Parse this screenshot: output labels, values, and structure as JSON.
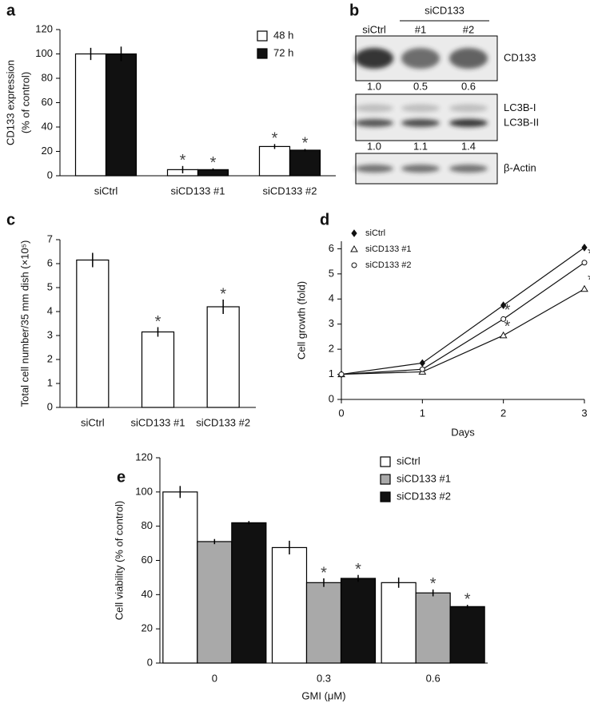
{
  "chart_data": [
    {
      "type": "bar",
      "panel": "a",
      "ylabel": [
        "CD133 expression",
        "(% of control)"
      ],
      "categories": [
        "siCtrl",
        "siCD133 #1",
        "siCD133 #2"
      ],
      "series": [
        {
          "name": "48 h",
          "color": "#ffffff",
          "values": [
            100,
            5,
            24
          ],
          "errors": [
            5,
            3,
            2
          ],
          "annotations": [
            null,
            "*",
            "*"
          ]
        },
        {
          "name": "72 h",
          "color": "#111111",
          "values": [
            100,
            5,
            21
          ],
          "errors": [
            6,
            1,
            1
          ],
          "annotations": [
            null,
            "*",
            "*"
          ]
        }
      ],
      "ylim": [
        0,
        120
      ],
      "yticks": [
        0,
        20,
        40,
        60,
        80,
        100,
        120
      ]
    },
    {
      "type": "blot",
      "panel": "b",
      "group_label": "siCD133",
      "lanes": [
        "siCtrl",
        "#1",
        "#2"
      ],
      "blots": [
        {
          "bands": [
            "CD133"
          ],
          "quantification": {
            "values": [
              1.0,
              0.5,
              0.6
            ],
            "value_labels": [
              "1.0",
              "0.5",
              "0.6"
            ]
          }
        },
        {
          "bands": [
            "LC3B-I",
            "LC3B-II"
          ],
          "quantification": {
            "values": [
              1.0,
              1.1,
              1.4
            ],
            "value_labels": [
              "1.0",
              "1.1",
              "1.4"
            ]
          }
        },
        {
          "bands": [
            "β-Actin"
          ]
        }
      ]
    },
    {
      "type": "bar",
      "panel": "c",
      "ylabel": "Total cell number/35 mm dish (×10⁵)",
      "categories": [
        "siCtrl",
        "siCD133 #1",
        "siCD133 #2"
      ],
      "series": [
        {
          "color": "#ffffff",
          "values": [
            6.15,
            3.15,
            4.2
          ],
          "errors": [
            0.3,
            0.2,
            0.3
          ],
          "annotations": [
            null,
            "*",
            "*"
          ]
        }
      ],
      "ylim": [
        0,
        7
      ],
      "yticks": [
        0,
        1,
        2,
        3,
        4,
        5,
        6,
        7
      ]
    },
    {
      "type": "line",
      "panel": "d",
      "xlabel": "Days",
      "ylabel": "Cell growth (fold)",
      "x": [
        0,
        1,
        2,
        3
      ],
      "series": [
        {
          "name": "siCtrl",
          "marker": "diamond",
          "color": "#111111",
          "values": [
            1,
            1.45,
            3.75,
            6.05
          ]
        },
        {
          "name": "siCD133 #1",
          "marker": "triangle",
          "color": "#111111",
          "values": [
            1,
            1.1,
            2.55,
            4.4
          ],
          "annotations": [
            null,
            null,
            "*",
            "*"
          ]
        },
        {
          "name": "siCD133 #2",
          "marker": "circle",
          "color": "#111111",
          "values": [
            1,
            1.2,
            3.2,
            5.45
          ],
          "annotations": [
            null,
            null,
            "*",
            "*"
          ]
        }
      ],
      "xlim": [
        0,
        3
      ],
      "xticks": [
        0,
        1,
        2,
        3
      ],
      "ylim": [
        0,
        6.3
      ],
      "yticks": [
        0,
        1,
        2,
        3,
        4,
        5,
        6
      ]
    },
    {
      "type": "bar",
      "panel": "e",
      "xlabel": "GMI (μM)",
      "ylabel": "Cell viability (% of control)",
      "categories": [
        "0",
        "0.3",
        "0.6"
      ],
      "series": [
        {
          "name": "siCtrl",
          "color": "#ffffff",
          "values": [
            100,
            67.5,
            47
          ],
          "errors": [
            3.5,
            4,
            3
          ]
        },
        {
          "name": "siCD133 #1",
          "color": "#a9a9a9",
          "values": [
            71,
            47,
            41
          ],
          "errors": [
            1.5,
            2.5,
            2
          ],
          "annotations": [
            null,
            "*",
            "*"
          ]
        },
        {
          "name": "siCD133 #2",
          "color": "#111111",
          "values": [
            82,
            49.5,
            33
          ],
          "errors": [
            1,
            2,
            1
          ],
          "annotations": [
            null,
            "*",
            "*"
          ]
        }
      ],
      "ylim": [
        0,
        120
      ],
      "yticks": [
        0,
        20,
        40,
        60,
        80,
        100,
        120
      ]
    }
  ]
}
